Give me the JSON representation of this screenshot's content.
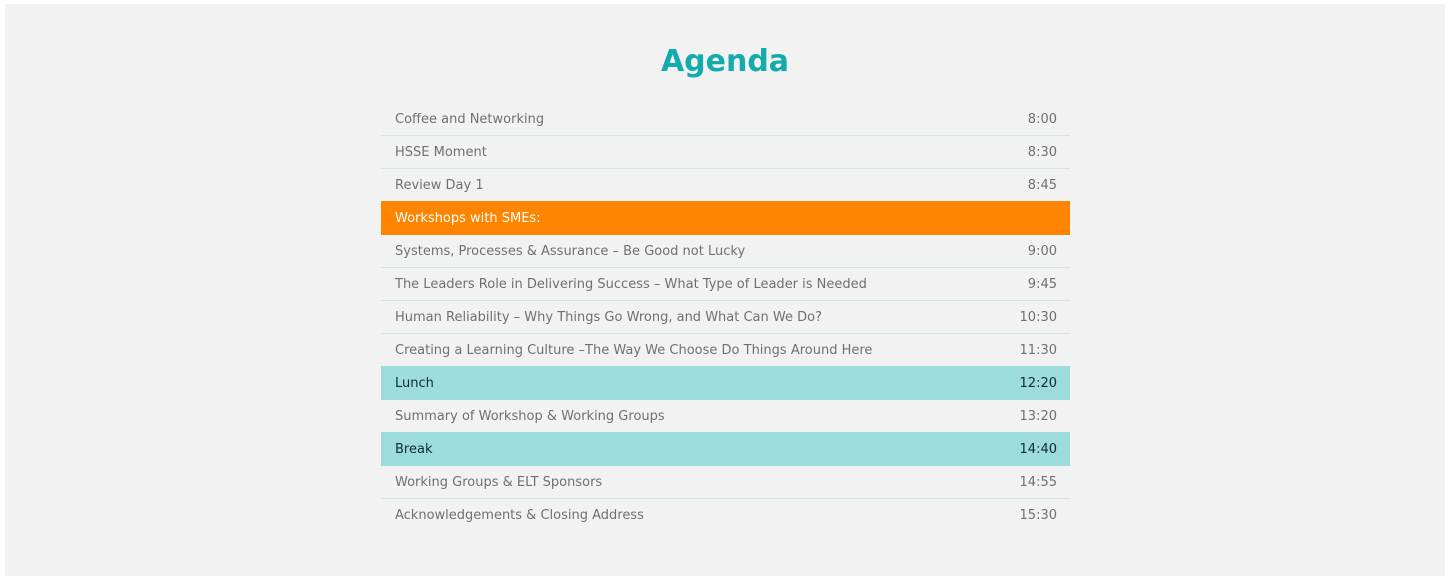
{
  "agenda": {
    "title": "Agenda",
    "rows": [
      {
        "label": "Coffee and Networking",
        "time": "8:00",
        "style": "normal"
      },
      {
        "label": "HSSE Moment",
        "time": "8:30",
        "style": "normal"
      },
      {
        "label": "Review Day 1",
        "time": "8:45",
        "style": "normal"
      },
      {
        "label": "Workshops with SMEs:",
        "time": "",
        "style": "section"
      },
      {
        "label": "Systems, Processes & Assurance – Be Good not Lucky",
        "time": "9:00",
        "style": "normal"
      },
      {
        "label": "The Leaders Role in Delivering Success – What Type of Leader is Needed",
        "time": "9:45",
        "style": "normal"
      },
      {
        "label": "Human Reliability – Why Things Go Wrong, and What Can We Do?",
        "time": "10:30",
        "style": "normal"
      },
      {
        "label": "Creating a Learning Culture –The Way We Choose Do Things Around Here",
        "time": "11:30",
        "style": "normal"
      },
      {
        "label": "Lunch",
        "time": "12:20",
        "style": "break"
      },
      {
        "label": "Summary of Workshop & Working Groups",
        "time": "13:20",
        "style": "normal"
      },
      {
        "label": "Break",
        "time": "14:40",
        "style": "break"
      },
      {
        "label": "Working Groups & ELT Sponsors",
        "time": "14:55",
        "style": "normal"
      },
      {
        "label": "Acknowledgements & Closing Address",
        "time": "15:30",
        "style": "normal"
      }
    ]
  },
  "colors": {
    "title": "#14abae",
    "section_bg": "#ff8400",
    "break_bg": "#9cdcdc",
    "panel_bg": "#f2f2f2",
    "row_text": "#707070",
    "divider": "#cfe6e4"
  }
}
